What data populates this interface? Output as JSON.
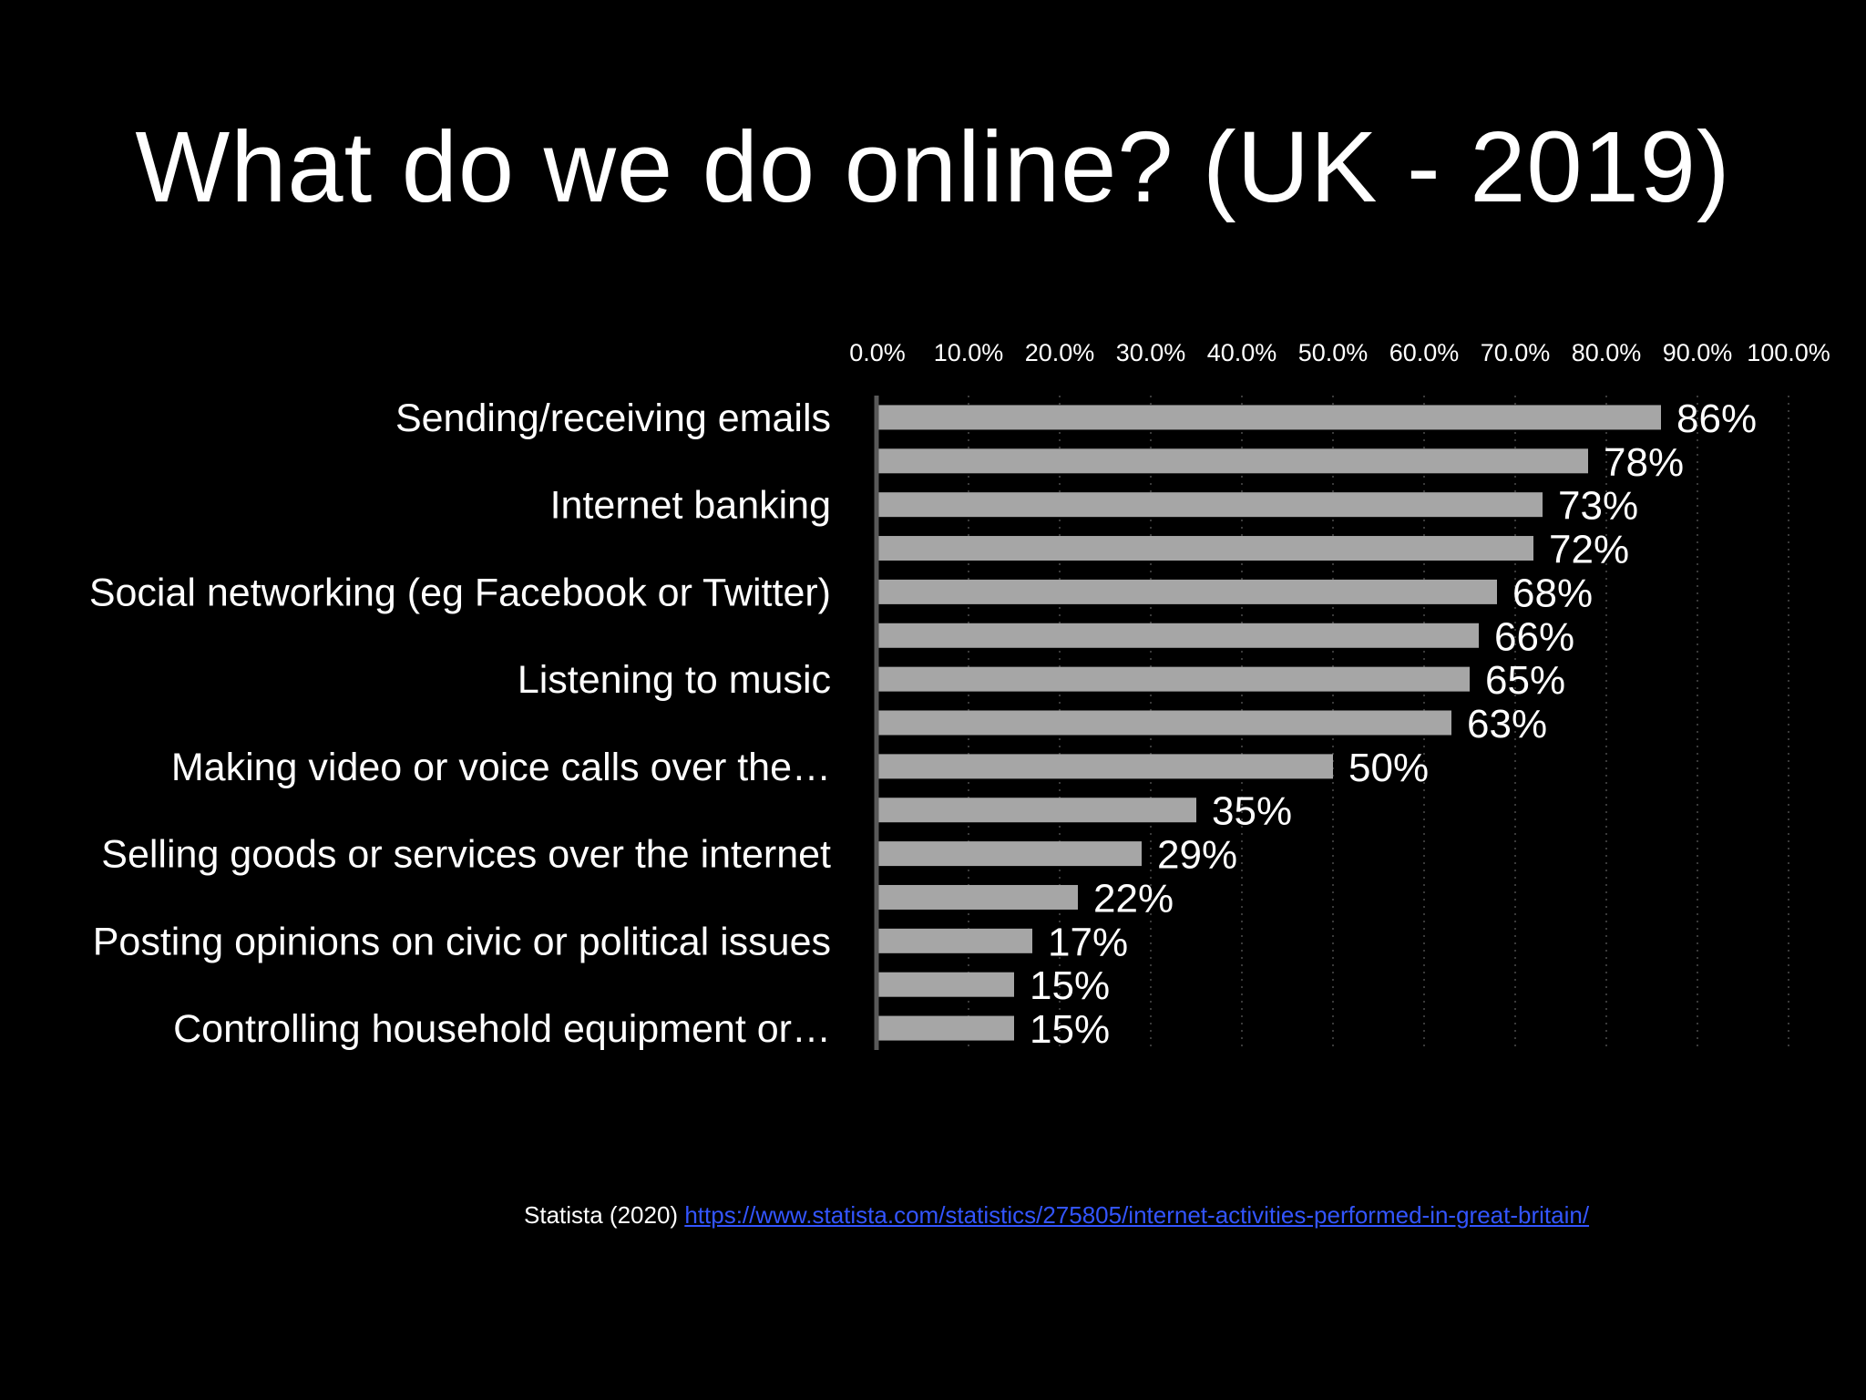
{
  "title": "What do we do online? (UK - 2019)",
  "source": {
    "text": "Statista (2020)",
    "link": "https://www.statista.com/statistics/275805/internet-activities-performed-in-great-britain/"
  },
  "colors": {
    "background": "#000000",
    "bar": "#a6a6a6",
    "text": "#ffffff",
    "link": "#3355ff"
  },
  "chart_data": {
    "type": "bar",
    "orientation": "horizontal",
    "xlim": [
      0,
      100
    ],
    "x_ticks": [
      "0.0%",
      "10.0%",
      "20.0%",
      "30.0%",
      "40.0%",
      "50.0%",
      "60.0%",
      "70.0%",
      "80.0%",
      "90.0%",
      "100.0%"
    ],
    "grid": "vertical-dotted",
    "categories": [
      "Sending/receiving emails",
      "",
      "Internet banking",
      "",
      "Social networking (eg Facebook or Twitter)",
      "",
      "Listening to music",
      "",
      "Making video or voice calls over the…",
      "",
      "Selling goods or services over the internet",
      "",
      "Posting opinions on civic or political issues",
      "",
      "Controlling household equipment or…"
    ],
    "values": [
      86,
      78,
      73,
      72,
      68,
      66,
      65,
      63,
      50,
      35,
      29,
      22,
      17,
      15,
      15
    ],
    "data_labels": [
      "86%",
      "78%",
      "73%",
      "72%",
      "68%",
      "66%",
      "65%",
      "63%",
      "50%",
      "35%",
      "29%",
      "22%",
      "17%",
      "15%",
      "15%"
    ]
  }
}
